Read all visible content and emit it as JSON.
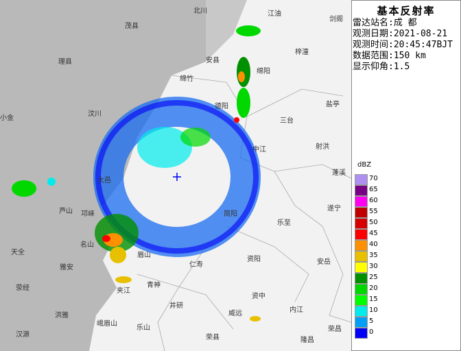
{
  "title": "基本反射率",
  "info": [
    "雷达站名:成 都",
    "观测日期:2021-08-21",
    "观测时间:20:45:47BJT",
    "数据范围:150 km",
    "显示仰角:1.5"
  ],
  "legend": {
    "unit": "dBZ",
    "levels": [
      {
        "value": 70,
        "color": "#ad90f0"
      },
      {
        "value": 65,
        "color": "#780084"
      },
      {
        "value": 60,
        "color": "#ff00f0"
      },
      {
        "value": 55,
        "color": "#c00000"
      },
      {
        "value": 50,
        "color": "#d60000"
      },
      {
        "value": 45,
        "color": "#ff0000"
      },
      {
        "value": 40,
        "color": "#ff9000"
      },
      {
        "value": 35,
        "color": "#e7c000"
      },
      {
        "value": 30,
        "color": "#ffff00"
      },
      {
        "value": 25,
        "color": "#019000"
      },
      {
        "value": 20,
        "color": "#00d800"
      },
      {
        "value": 15,
        "color": "#00ff00"
      },
      {
        "value": 10,
        "color": "#00ecec"
      },
      {
        "value": 5,
        "color": "#01a0f6"
      },
      {
        "value": 0,
        "color": "#0000f6"
      }
    ]
  },
  "places": [
    "北川",
    "江油",
    "剑阁",
    "茂县",
    "安县",
    "梓潼",
    "理县",
    "绵竹",
    "绵阳",
    "盐亭",
    "汶川",
    "德阳",
    "三台",
    "小金",
    "中江",
    "射洪",
    "大邑",
    "蓬溪",
    "芦山",
    "简阳",
    "遂宁",
    "乐至",
    "邛崃",
    "名山",
    "眉山",
    "资阳",
    "安岳",
    "天全",
    "雅安",
    "仁寿",
    "荥经",
    "夹江",
    "青神",
    "资中",
    "内江",
    "井研",
    "威远",
    "洪雅",
    "峨眉山",
    "乐山",
    "汉源",
    "荣县",
    "隆昌",
    "荣昌"
  ]
}
